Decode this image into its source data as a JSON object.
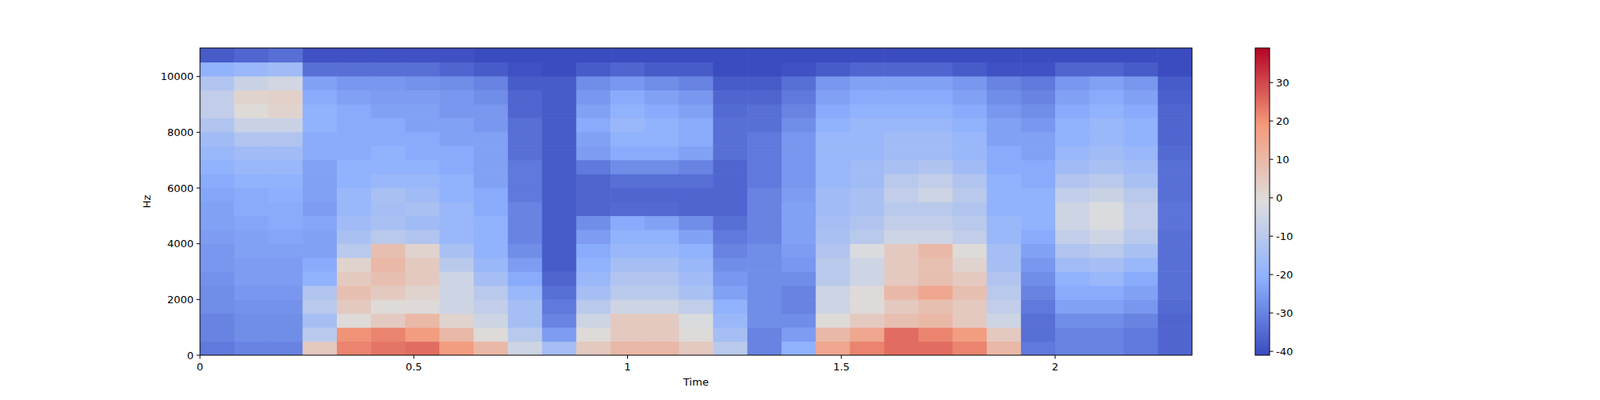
{
  "chart_data": {
    "type": "heatmap",
    "x_label": "Time",
    "y_label": "Hz",
    "xlim": [
      0,
      2.32
    ],
    "ylim": [
      0,
      11025
    ],
    "xticks": [
      0,
      0.5,
      1,
      1.5,
      2
    ],
    "yticks": [
      0,
      2000,
      4000,
      6000,
      8000,
      10000
    ],
    "colorbar": {
      "range": [
        -41,
        39
      ],
      "ticks": [
        -40,
        -30,
        -20,
        -10,
        0,
        10,
        20,
        30
      ]
    },
    "cells": [
      [
        -32,
        -30,
        -30,
        -28,
        -28,
        -27,
        -26,
        -26,
        -25,
        -24,
        -24,
        -23,
        -22,
        -20,
        -18,
        -16,
        -12,
        -8,
        -8,
        -12,
        -20,
        -38
      ],
      [
        -30,
        -28,
        -28,
        -27,
        -26,
        -25,
        -25,
        -24,
        -24,
        -23,
        -22,
        -22,
        -20,
        -18,
        -16,
        -12,
        -6,
        0,
        2,
        -6,
        -18,
        -36
      ],
      [
        -30,
        -28,
        -28,
        -27,
        -26,
        -25,
        -25,
        -24,
        -23,
        -22,
        -22,
        -21,
        -20,
        -18,
        -16,
        -12,
        -6,
        2,
        3,
        -4,
        -16,
        -34
      ],
      [
        5,
        -10,
        -15,
        -10,
        -12,
        -20,
        -22,
        -24,
        -24,
        -23,
        -25,
        -24,
        -24,
        -24,
        -22,
        -22,
        -20,
        -20,
        -22,
        -24,
        -34,
        -40
      ],
      [
        22,
        20,
        0,
        5,
        8,
        5,
        2,
        -10,
        -14,
        -16,
        -18,
        -18,
        -20,
        -20,
        -22,
        -22,
        -22,
        -22,
        -24,
        -26,
        -34,
        -40
      ],
      [
        24,
        22,
        5,
        0,
        5,
        8,
        10,
        8,
        -10,
        -14,
        -15,
        -14,
        -18,
        -20,
        -20,
        -22,
        -22,
        -24,
        -25,
        -26,
        -34,
        -40
      ],
      [
        25,
        18,
        10,
        0,
        2,
        5,
        5,
        2,
        -12,
        -16,
        -14,
        -16,
        -18,
        -20,
        -22,
        -22,
        -24,
        -24,
        -25,
        -27,
        -34,
        -40
      ],
      [
        18,
        10,
        2,
        -5,
        -5,
        -5,
        -10,
        -14,
        -18,
        -18,
        -18,
        -20,
        -20,
        -22,
        -22,
        -24,
        -24,
        -26,
        -26,
        -28,
        -36,
        -40
      ],
      [
        10,
        0,
        -5,
        -8,
        -10,
        -15,
        -18,
        -20,
        -20,
        -20,
        -22,
        -22,
        -24,
        -24,
        -24,
        -24,
        -26,
        -26,
        -28,
        -30,
        -38,
        -41
      ],
      [
        -5,
        -10,
        -15,
        -15,
        -18,
        -22,
        -25,
        -28,
        -30,
        -30,
        -30,
        -32,
        -32,
        -32,
        -34,
        -34,
        -34,
        -36,
        -36,
        -38,
        -40,
        -41
      ],
      [
        -15,
        -25,
        -30,
        -32,
        -34,
        -36,
        -38,
        -38,
        -38,
        -38,
        -38,
        -38,
        -38,
        -38,
        -38,
        -38,
        -38,
        -38,
        -38,
        -38,
        -41,
        -41
      ],
      [
        5,
        0,
        -5,
        -10,
        -15,
        -18,
        -20,
        -22,
        -25,
        -28,
        -36,
        -36,
        -36,
        -32,
        -25,
        -24,
        -22,
        -24,
        -26,
        -28,
        -38,
        -41
      ],
      [
        10,
        5,
        5,
        -5,
        -10,
        -12,
        -15,
        -18,
        -20,
        -22,
        -35,
        -36,
        -34,
        -28,
        -22,
        -20,
        -18,
        -20,
        -22,
        -26,
        -36,
        -41
      ],
      [
        10,
        5,
        5,
        -5,
        -10,
        -12,
        -15,
        -18,
        -20,
        -24,
        -35,
        -36,
        -34,
        -28,
        -22,
        -20,
        -20,
        -22,
        -24,
        -28,
        -38,
        -41
      ],
      [
        5,
        0,
        -2,
        -8,
        -14,
        -16,
        -18,
        -20,
        -24,
        -28,
        -36,
        -36,
        -34,
        -30,
        -24,
        -22,
        -22,
        -24,
        -26,
        -30,
        -38,
        -41
      ],
      [
        -10,
        -15,
        -18,
        -20,
        -24,
        -26,
        -28,
        -30,
        -32,
        -34,
        -36,
        -36,
        -36,
        -36,
        -34,
        -34,
        -34,
        -35,
        -36,
        -38,
        -41,
        -41
      ],
      [
        -30,
        -30,
        -28,
        -28,
        -28,
        -28,
        -28,
        -28,
        -30,
        -30,
        -30,
        -30,
        -32,
        -32,
        -32,
        -32,
        -34,
        -34,
        -36,
        -38,
        -41,
        -41
      ],
      [
        -20,
        -25,
        -28,
        -30,
        -30,
        -28,
        -26,
        -25,
        -24,
        -24,
        -24,
        -25,
        -26,
        -26,
        -26,
        -26,
        -28,
        -30,
        -32,
        -34,
        -40,
        -41
      ],
      [
        15,
        10,
        0,
        -5,
        -5,
        -10,
        -10,
        -12,
        -14,
        -15,
        -16,
        -16,
        -18,
        -18,
        -18,
        -18,
        -20,
        -22,
        -24,
        -26,
        -38,
        -41
      ],
      [
        22,
        15,
        5,
        0,
        0,
        -5,
        -5,
        -2,
        -10,
        -12,
        -14,
        -14,
        -16,
        -16,
        -18,
        -18,
        -18,
        -20,
        -22,
        -24,
        -36,
        -41
      ],
      [
        25,
        25,
        8,
        5,
        10,
        5,
        5,
        5,
        -5,
        -8,
        -10,
        -8,
        -10,
        -14,
        -16,
        -16,
        -18,
        -20,
        -22,
        -24,
        -36,
        -41
      ],
      [
        25,
        22,
        10,
        8,
        15,
        8,
        8,
        10,
        -5,
        -8,
        -10,
        -5,
        -8,
        -12,
        -16,
        -16,
        -18,
        -20,
        -22,
        -24,
        -36,
        -41
      ],
      [
        22,
        18,
        5,
        5,
        8,
        5,
        2,
        0,
        -8,
        -10,
        -12,
        -10,
        -12,
        -16,
        -18,
        -18,
        -20,
        -22,
        -24,
        -26,
        -38,
        -41
      ],
      [
        10,
        5,
        -5,
        -8,
        -10,
        -12,
        -15,
        -15,
        -18,
        -18,
        -20,
        -20,
        -20,
        -22,
        -22,
        -24,
        -24,
        -26,
        -28,
        -30,
        -40,
        -41
      ],
      [
        -32,
        -34,
        -34,
        -32,
        -30,
        -28,
        -26,
        -24,
        -22,
        -20,
        -20,
        -20,
        -22,
        -22,
        -24,
        -24,
        -26,
        -28,
        -30,
        -32,
        -40,
        -41
      ],
      [
        -30,
        -30,
        -28,
        -24,
        -22,
        -20,
        -16,
        -12,
        -8,
        -5,
        -5,
        -8,
        -12,
        -16,
        -18,
        -20,
        -20,
        -22,
        -24,
        -26,
        -36,
        -41
      ],
      [
        -30,
        -30,
        -28,
        -24,
        -22,
        -18,
        -15,
        -10,
        -5,
        -2,
        -2,
        -6,
        -10,
        -14,
        -16,
        -18,
        -18,
        -20,
        -22,
        -24,
        -36,
        -41
      ],
      [
        -32,
        -32,
        -30,
        -26,
        -24,
        -22,
        -18,
        -14,
        -10,
        -8,
        -8,
        -10,
        -14,
        -16,
        -18,
        -20,
        -20,
        -22,
        -24,
        -26,
        -38,
        -41
      ],
      [
        -36,
        -36,
        -36,
        -35,
        -34,
        -34,
        -34,
        -34,
        -34,
        -33,
        -33,
        -34,
        -34,
        -34,
        -35,
        -36,
        -36,
        -36,
        -37,
        -38,
        -41,
        -41
      ]
    ]
  }
}
